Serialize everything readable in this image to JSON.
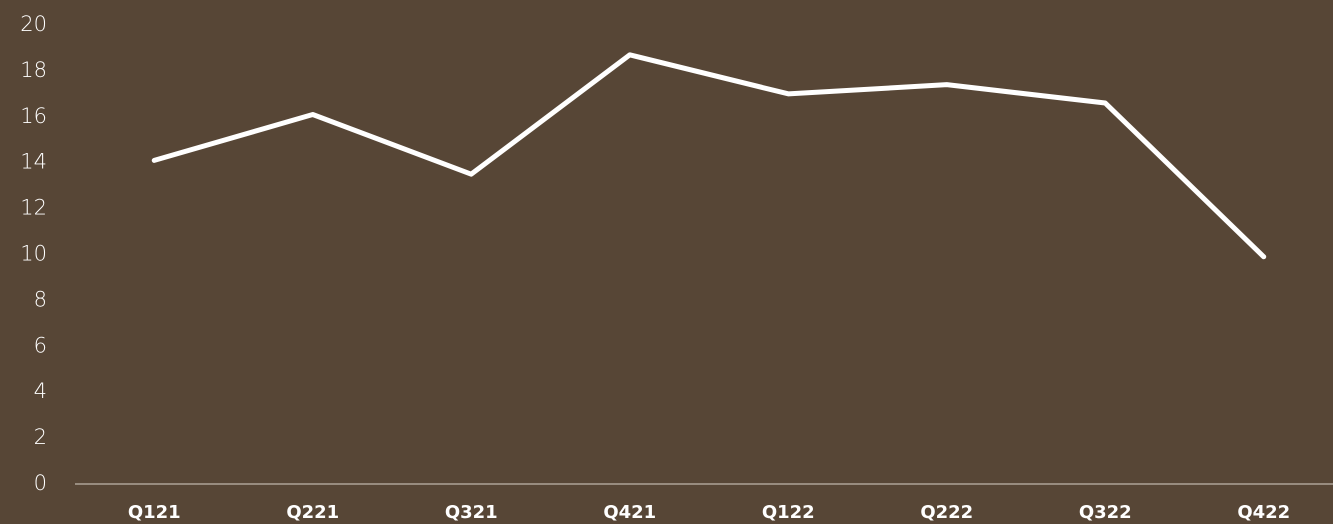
{
  "chart_data": {
    "type": "line",
    "categories": [
      "Q121",
      "Q221",
      "Q321",
      "Q421",
      "Q122",
      "Q222",
      "Q322",
      "Q422"
    ],
    "values": [
      14.1,
      16.1,
      13.5,
      18.7,
      17.0,
      17.4,
      16.6,
      9.9
    ],
    "color": "#ffffff",
    "ylim": [
      0,
      20
    ],
    "yticks": [
      0,
      2,
      4,
      6,
      8,
      10,
      12,
      14,
      16,
      18,
      20
    ],
    "grid": false
  }
}
